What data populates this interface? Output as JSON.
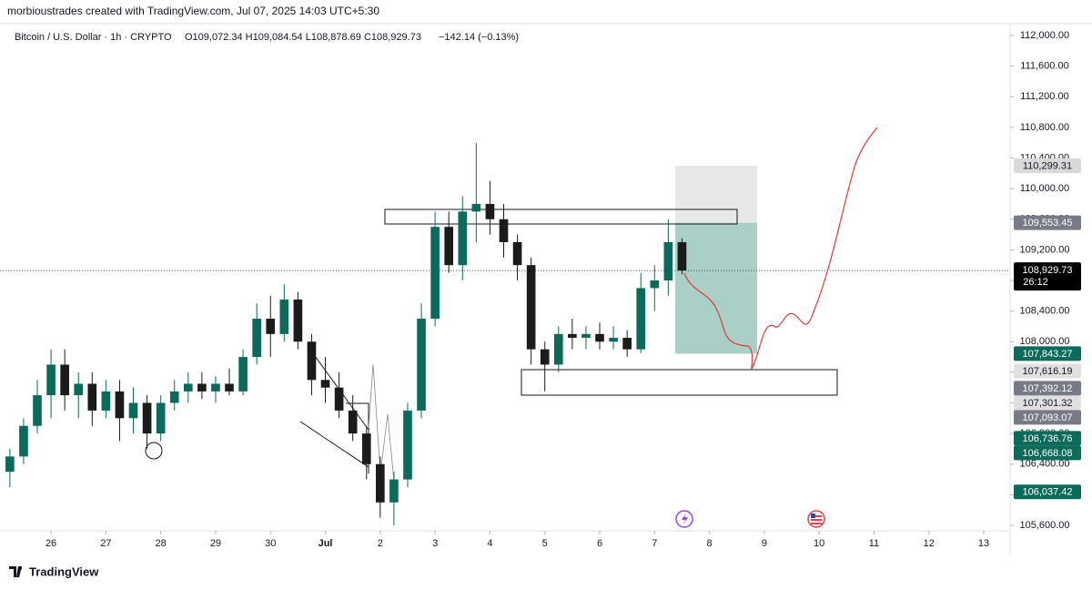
{
  "header": {
    "credit": "morbioustrades created with TradingView.com, Jul 07, 2025 14:03 UTC+5:30",
    "footer": "TradingView"
  },
  "chart_data": {
    "type": "candlestick",
    "title": "Bitcoin / U.S. Dollar · 1h · CRYPTO",
    "ohlc_text": "O109,072.34  H109,084.54  L108,878.69  C108,929.73",
    "change_text": "−142.14 (−0.13%)",
    "up_color": "#0b6b5a",
    "down_color": "#1b1b1b",
    "x": [
      -0.75,
      -0.5,
      -0.25,
      0,
      0.25,
      0.5,
      0.75,
      1,
      1.25,
      1.5,
      1.75,
      2,
      2.25,
      2.5,
      2.75,
      3,
      3.25,
      3.5,
      3.75,
      4,
      4.25,
      4.5,
      4.75,
      5,
      5.25,
      5.5,
      5.75,
      6,
      6.25,
      6.5,
      6.75,
      7,
      7.25,
      7.5,
      7.75,
      8,
      8.25,
      8.5,
      8.75,
      9,
      9.25,
      9.5,
      9.75,
      10,
      10.25,
      10.5,
      10.75,
      11,
      11.25,
      11.5
    ],
    "open": [
      106300,
      106500,
      106900,
      107300,
      107700,
      107300,
      107450,
      107100,
      107350,
      107000,
      107200,
      106800,
      107200,
      107350,
      107450,
      107350,
      107450,
      107350,
      107800,
      108300,
      108100,
      108550,
      108000,
      107500,
      107400,
      107100,
      106800,
      106400,
      105900,
      106200,
      107100,
      108300,
      109500,
      109000,
      109700,
      109800,
      109600,
      109300,
      109000,
      107900,
      107700,
      108100,
      108050,
      108100,
      108000,
      108050,
      107900,
      108700,
      108800,
      109300
    ],
    "high": [
      106600,
      107000,
      107500,
      107900,
      107900,
      107600,
      107600,
      107500,
      107500,
      107400,
      107300,
      107300,
      107500,
      107600,
      107600,
      107550,
      107650,
      107900,
      108500,
      108600,
      108750,
      108650,
      108100,
      107800,
      107600,
      107300,
      106900,
      106500,
      106300,
      107200,
      108500,
      109700,
      109700,
      109900,
      110600,
      110100,
      109800,
      109400,
      109100,
      108000,
      108200,
      108300,
      108200,
      108250,
      108200,
      108150,
      108900,
      109000,
      109600,
      109350
    ],
    "low": [
      106100,
      106400,
      106800,
      107000,
      107100,
      107000,
      106900,
      107000,
      106700,
      106800,
      106600,
      106700,
      107100,
      107200,
      107250,
      107200,
      107300,
      107300,
      107700,
      107800,
      108000,
      107900,
      107300,
      107200,
      107000,
      106700,
      106200,
      105700,
      105600,
      106100,
      107000,
      108200,
      108900,
      108800,
      109300,
      109400,
      109100,
      108800,
      107700,
      107350,
      107600,
      107900,
      107900,
      107900,
      107900,
      107800,
      107850,
      108400,
      108600,
      108880
    ],
    "close": [
      106500,
      106900,
      107300,
      107700,
      107300,
      107450,
      107100,
      107350,
      107000,
      107200,
      106800,
      107200,
      107350,
      107450,
      107350,
      107450,
      107350,
      107800,
      108300,
      108100,
      108550,
      108000,
      107500,
      107400,
      107100,
      106800,
      106400,
      105900,
      106200,
      107100,
      108300,
      109500,
      109000,
      109700,
      109800,
      109600,
      109300,
      109000,
      107900,
      107700,
      108100,
      108050,
      108100,
      108000,
      108050,
      107900,
      108700,
      108800,
      109300,
      108930
    ],
    "xlim": [
      -0.93,
      17.48
    ],
    "xticks": [
      {
        "value": 0,
        "label": "26"
      },
      {
        "value": 1,
        "label": "27"
      },
      {
        "value": 2,
        "label": "28"
      },
      {
        "value": 3,
        "label": "29"
      },
      {
        "value": 4,
        "label": "30"
      },
      {
        "value": 5,
        "label": "Jul"
      },
      {
        "value": 6,
        "label": "2"
      },
      {
        "value": 7,
        "label": "3"
      },
      {
        "value": 8,
        "label": "4"
      },
      {
        "value": 9,
        "label": "5"
      },
      {
        "value": 10,
        "label": "6"
      },
      {
        "value": 11,
        "label": "7"
      },
      {
        "value": 12,
        "label": "8"
      },
      {
        "value": 13,
        "label": "9"
      },
      {
        "value": 14,
        "label": "10"
      },
      {
        "value": 15,
        "label": "11"
      },
      {
        "value": 16,
        "label": "12"
      },
      {
        "value": 17,
        "label": "13"
      }
    ],
    "ylim": [
      105500,
      112100
    ],
    "yticks": [
      {
        "value": 105600,
        "label": "105,600.00"
      },
      {
        "value": 106000,
        "label": "106,000.00"
      },
      {
        "value": 106400,
        "label": "106,400.00"
      },
      {
        "value": 106800,
        "label": "106,800.00"
      },
      {
        "value": 107200,
        "label": "107,200.00"
      },
      {
        "value": 107600,
        "label": "107,600.00"
      },
      {
        "value": 108000,
        "label": "108,000.00"
      },
      {
        "value": 108400,
        "label": "108,400.00"
      },
      {
        "value": 108800,
        "label": "108,800.00"
      },
      {
        "value": 109200,
        "label": "109,200.00"
      },
      {
        "value": 109600,
        "label": "109,600.00"
      },
      {
        "value": 110000,
        "label": "110,000.00"
      },
      {
        "value": 110400,
        "label": "110,400.00"
      },
      {
        "value": 110800,
        "label": "110,800.00"
      },
      {
        "value": 111200,
        "label": "111,200.00"
      },
      {
        "value": 111600,
        "label": "111,600.00"
      },
      {
        "value": 112000,
        "label": "112,000.00"
      }
    ],
    "current_price": {
      "value": 108929.73,
      "label": "108,929.73",
      "countdown": "26:12"
    },
    "price_tags": [
      {
        "value": 110299.31,
        "label": "110,299.31",
        "color": "#d9d9d9"
      },
      {
        "value": 109553.45,
        "label": "109,553.45",
        "color": "#787b86"
      },
      {
        "value": 107843.27,
        "label": "107,843.27",
        "color": "#0b6b5a"
      },
      {
        "value": 107616.19,
        "label": "107,616.19",
        "color": "#e0e0e0"
      },
      {
        "value": 107392.12,
        "label": "107,392.12",
        "color": "#787b86"
      },
      {
        "value": 107301.32,
        "label": "107,301.32",
        "color": "#e0e0e0"
      },
      {
        "value": 107093.07,
        "label": "107,093.07",
        "color": "#787b86"
      },
      {
        "value": 106736.76,
        "label": "106,736.76",
        "color": "#0b6b5a"
      },
      {
        "value": 106668.08,
        "label": "106,668.08",
        "color": "#0b6b5a"
      },
      {
        "value": 106037.42,
        "label": "106,037.42",
        "color": "#0b6b5a"
      }
    ]
  }
}
